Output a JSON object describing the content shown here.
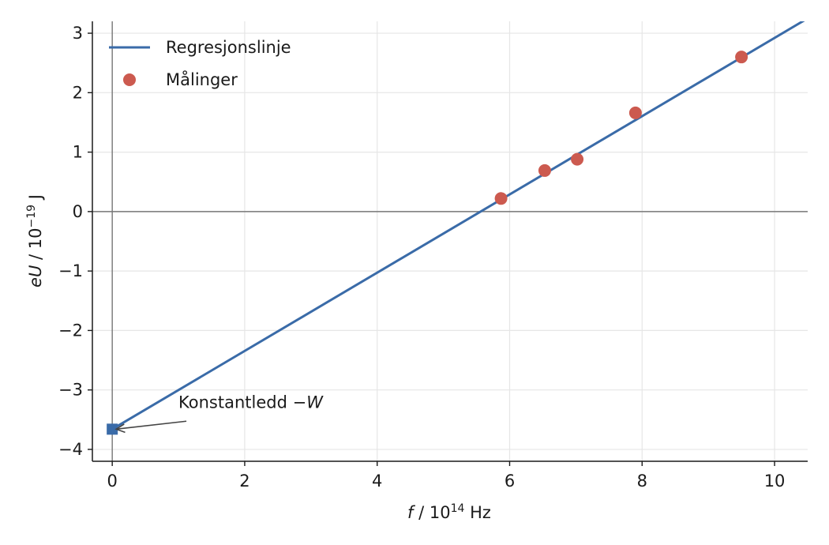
{
  "chart_data": {
    "type": "scatter",
    "title": "",
    "xlabel_italic": "f",
    "xlabel_rest": " / 10",
    "xlabel_exp": "14",
    "xlabel_unit": " Hz",
    "ylabel_italic": "eU",
    "ylabel_rest": " / 10",
    "ylabel_exp": "−19",
    "ylabel_unit": " J",
    "xlim": [
      -0.3,
      10.5
    ],
    "ylim": [
      -4.2,
      3.2
    ],
    "xticks": [
      0,
      2,
      4,
      6,
      8,
      10
    ],
    "yticks": [
      -4,
      -3,
      -2,
      -1,
      0,
      1,
      2,
      3
    ],
    "grid": true,
    "legend_position": "top-left",
    "series": [
      {
        "name": "Regresjonslinje",
        "kind": "line",
        "color": "#3a6ba8",
        "x": [
          0,
          10.5
        ],
        "y": [
          -3.66,
          3.25
        ]
      },
      {
        "name": "Målinger",
        "kind": "scatter",
        "color": "#cc5a4f",
        "x": [
          5.87,
          6.53,
          7.02,
          7.9,
          9.5
        ],
        "y": [
          0.22,
          0.69,
          0.88,
          1.66,
          2.6
        ]
      }
    ],
    "intercept_marker": {
      "x": 0,
      "y": -3.66,
      "color": "#3a6ba8"
    },
    "annotation": {
      "text": "Konstantledd −",
      "text_italic": "W",
      "x": 0,
      "y": -3.66,
      "text_x": 1.0,
      "text_y": -3.3
    }
  }
}
